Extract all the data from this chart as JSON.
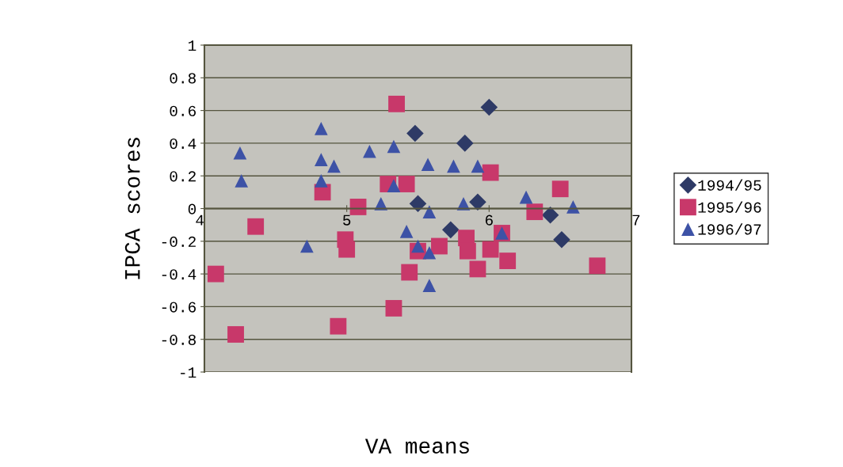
{
  "chart_data": {
    "type": "scatter",
    "xlabel": "VA means",
    "ylabel": "IPCA scores",
    "xlim": [
      4,
      7
    ],
    "xticks": [
      4,
      5,
      6,
      7
    ],
    "ylim": [
      -1,
      1
    ],
    "yticks": [
      {
        "value": -1,
        "label": "-1"
      },
      {
        "value": -0.8,
        "label": "-0.8"
      },
      {
        "value": -0.6,
        "label": "-0.6"
      },
      {
        "value": -0.4,
        "label": "-0.4"
      },
      {
        "value": -0.2,
        "label": "-0.2"
      },
      {
        "value": 0,
        "label": "0"
      },
      {
        "value": 0.2,
        "label": "0.2"
      },
      {
        "value": 0.4,
        "label": "0.4"
      },
      {
        "value": 0.6,
        "label": "0.6"
      },
      {
        "value": 0.8,
        "label": "0.8"
      },
      {
        "value": 1,
        "label": "1"
      }
    ],
    "grid": "y",
    "legend": "right",
    "series": [
      {
        "name": "1994/95",
        "color": "#2e3a66",
        "marker": "diamond",
        "x": [
          6.0,
          5.48,
          5.83,
          5.5,
          5.92,
          5.73,
          6.43,
          6.51
        ],
        "values": [
          0.62,
          0.46,
          0.4,
          0.03,
          0.04,
          -0.13,
          -0.04,
          -0.19
        ]
      },
      {
        "name": "1995/96",
        "color": "#c8386a",
        "marker": "square",
        "x": [
          5.35,
          4.83,
          5.08,
          4.36,
          4.99,
          5.0,
          4.08,
          4.22,
          4.94,
          5.33,
          5.29,
          5.42,
          6.01,
          6.5,
          6.32,
          5.5,
          5.65,
          5.84,
          5.85,
          6.01,
          6.09,
          6.13,
          5.92,
          5.44,
          6.76
        ],
        "values": [
          0.64,
          0.1,
          0.01,
          -0.11,
          -0.19,
          -0.25,
          -0.4,
          -0.77,
          -0.72,
          -0.61,
          0.15,
          0.15,
          0.22,
          0.12,
          -0.02,
          -0.26,
          -0.23,
          -0.18,
          -0.26,
          -0.25,
          -0.15,
          -0.32,
          -0.37,
          -0.39,
          -0.35
        ]
      },
      {
        "name": "1996/97",
        "color": "#3d52a6",
        "marker": "triangle",
        "x": [
          4.25,
          4.26,
          4.82,
          4.82,
          4.91,
          4.82,
          4.72,
          5.16,
          5.33,
          5.24,
          5.33,
          5.57,
          5.75,
          5.92,
          5.82,
          6.26,
          6.59,
          5.58,
          5.42,
          5.5,
          5.58,
          6.09,
          5.58
        ],
        "values": [
          0.34,
          0.17,
          0.49,
          0.3,
          0.26,
          0.17,
          -0.23,
          0.35,
          0.38,
          0.03,
          0.14,
          0.27,
          0.26,
          0.26,
          0.03,
          0.07,
          0.01,
          -0.02,
          -0.14,
          -0.23,
          -0.27,
          -0.15,
          -0.47
        ]
      }
    ]
  }
}
